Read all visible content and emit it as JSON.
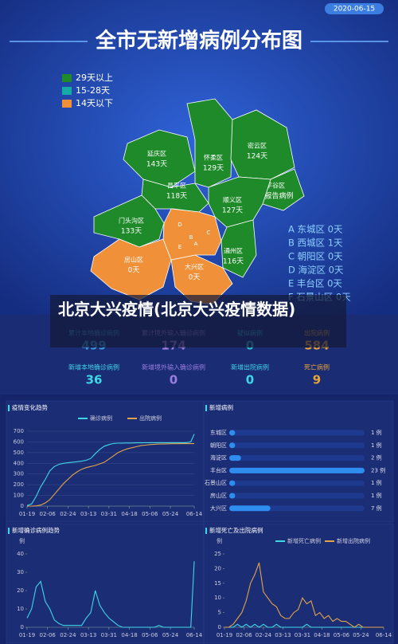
{
  "header": {
    "date": "2020-06-15",
    "title": "全市无新增病例分布图"
  },
  "map": {
    "legend": [
      {
        "label": "29天以上",
        "color": "#1e8a2a"
      },
      {
        "label": "15-28天",
        "color": "#17a8a8"
      },
      {
        "label": "14天以下",
        "color": "#f0913a"
      }
    ],
    "districts": [
      {
        "name": "延庆区",
        "days": "143天",
        "color": "#1e8a2a"
      },
      {
        "name": "怀柔区",
        "days": "129天",
        "color": "#1e8a2a"
      },
      {
        "name": "密云区",
        "days": "124天",
        "color": "#1e8a2a"
      },
      {
        "name": "昌平区",
        "days": "118天",
        "color": "#1e8a2a"
      },
      {
        "name": "平谷区",
        "days": "无报告病例",
        "color": "#1e8a2a"
      },
      {
        "name": "顺义区",
        "days": "127天",
        "color": "#1e8a2a"
      },
      {
        "name": "门头沟区",
        "days": "133天",
        "color": "#1e8a2a"
      },
      {
        "name": "通州区",
        "days": "116天",
        "color": "#1e8a2a"
      },
      {
        "name": "房山区",
        "days": "0天",
        "color": "#f0913a"
      },
      {
        "name": "大兴区",
        "days": "0天",
        "color": "#f0913a"
      }
    ],
    "center_labels": [
      "D",
      "B",
      "A",
      "C",
      "E"
    ],
    "district_list": [
      "A 东城区 0天",
      "B 西城区 1天",
      "C 朝阳区 0天",
      "D 海淀区 0天",
      "E 丰台区 0天",
      "F 石景山区 0天"
    ]
  },
  "caption": "北京大兴疫情(北京大兴疫情数据)",
  "stats": [
    {
      "label": "累计本地确诊病例",
      "value": 499,
      "color": "#3a9ad9"
    },
    {
      "label": "累计境外输入确诊病例",
      "value": 174,
      "color": "#9b7de0"
    },
    {
      "label": "疑似病例",
      "value": 0,
      "color": "#2fb8c8"
    },
    {
      "label": "出院病例",
      "value": 584,
      "color": "#e8a23a"
    },
    {
      "label": "新增本地确诊病例",
      "value": 36,
      "color": "#3fd6e8"
    },
    {
      "label": "新增境外输入确诊病例",
      "value": 0,
      "color": "#9b7de0"
    },
    {
      "label": "新增出院病例",
      "value": 0,
      "color": "#3fd6e8"
    },
    {
      "label": "死亡病例",
      "value": 9,
      "color": "#e8a23a"
    }
  ],
  "chart_data": [
    {
      "type": "line",
      "title": "疫情变化趋势",
      "grid": true,
      "x": [
        "01-19",
        "01-23",
        "01-27",
        "01-31",
        "02-04",
        "02-08",
        "02-12",
        "02-16",
        "02-20",
        "02-24",
        "02-28",
        "03-03",
        "03-07",
        "03-11",
        "03-15",
        "03-19",
        "03-23",
        "03-27",
        "03-31",
        "04-04",
        "04-08",
        "04-12",
        "04-16",
        "04-20",
        "04-24",
        "04-28",
        "05-02",
        "05-06",
        "05-10",
        "05-14",
        "05-18",
        "05-22",
        "05-26",
        "05-30",
        "06-03",
        "06-07",
        "06-11",
        "06-14"
      ],
      "xlim": [
        "01-19",
        "06-14"
      ],
      "xticks": [
        "01-19",
        "02-06",
        "02-24",
        "03-13",
        "03-31",
        "04-18",
        "05-06",
        "05-24",
        "06-14"
      ],
      "ylim": [
        0,
        700
      ],
      "yticks": [
        0,
        100,
        200,
        300,
        400,
        500,
        600,
        700
      ],
      "series": [
        {
          "name": "确诊病例",
          "color": "#3fd6e8",
          "values": [
            5,
            20,
            90,
            180,
            250,
            330,
            370,
            390,
            400,
            405,
            410,
            415,
            420,
            428,
            445,
            490,
            530,
            560,
            575,
            585,
            588,
            589,
            590,
            590,
            591,
            591,
            592,
            593,
            593,
            593,
            593,
            593,
            593,
            593,
            593,
            593,
            600,
            673
          ]
        },
        {
          "name": "出院病例",
          "color": "#e3a44a",
          "values": [
            0,
            0,
            2,
            10,
            30,
            60,
            110,
            160,
            210,
            250,
            290,
            320,
            345,
            360,
            370,
            380,
            395,
            410,
            440,
            470,
            500,
            520,
            535,
            545,
            555,
            565,
            570,
            575,
            578,
            580,
            580,
            582,
            583,
            583,
            584,
            584,
            584,
            584
          ]
        }
      ]
    },
    {
      "type": "bar",
      "title": "新增病例",
      "color": "#2f8df0",
      "categories": [
        "东城区",
        "朝阳区",
        "海淀区",
        "丰台区",
        "石景山区",
        "房山区",
        "大兴区"
      ],
      "values": [
        1,
        1,
        2,
        23,
        1,
        1,
        7
      ],
      "value_labels": [
        "1 例",
        "1 例",
        "2 例",
        "23 例",
        "1 例",
        "1 例",
        "7 例"
      ]
    },
    {
      "type": "line",
      "title": "新增确诊病例趋势",
      "y_label": "例",
      "grid": false,
      "x": [
        "01-19",
        "01-23",
        "01-27",
        "01-31",
        "02-04",
        "02-08",
        "02-12",
        "02-16",
        "02-20",
        "02-24",
        "02-28",
        "03-03",
        "03-07",
        "03-11",
        "03-15",
        "03-19",
        "03-23",
        "03-27",
        "03-31",
        "04-04",
        "04-08",
        "04-12",
        "04-16",
        "04-20",
        "04-24",
        "04-28",
        "05-02",
        "05-06",
        "05-10",
        "05-14",
        "05-18",
        "05-22",
        "05-26",
        "05-30",
        "06-03",
        "06-07",
        "06-11",
        "06-14"
      ],
      "xlim": [
        "01-19",
        "06-14"
      ],
      "xticks": [
        "01-19",
        "02-06",
        "02-24",
        "03-13",
        "03-31",
        "04-18",
        "05-06",
        "05-24",
        "06-14"
      ],
      "ylim": [
        0,
        40
      ],
      "yticks": [
        0,
        10,
        20,
        30,
        40
      ],
      "series": [
        {
          "name": null,
          "color": "#3fd6e8",
          "values": [
            5,
            10,
            22,
            25,
            14,
            10,
            4,
            2,
            1,
            1,
            1,
            1,
            1,
            5,
            8,
            20,
            12,
            8,
            5,
            3,
            1,
            0,
            0,
            0,
            0,
            0,
            0,
            0,
            0,
            1,
            0,
            0,
            0,
            0,
            0,
            0,
            0,
            36
          ]
        }
      ]
    },
    {
      "type": "line",
      "title": "新增死亡及出院病例",
      "y_label": "例",
      "grid": false,
      "x": [
        "01-19",
        "01-23",
        "01-27",
        "01-31",
        "02-04",
        "02-08",
        "02-12",
        "02-16",
        "02-20",
        "02-24",
        "02-28",
        "03-03",
        "03-07",
        "03-11",
        "03-15",
        "03-19",
        "03-23",
        "03-27",
        "03-31",
        "04-04",
        "04-08",
        "04-12",
        "04-16",
        "04-20",
        "04-24",
        "04-28",
        "05-02",
        "05-06",
        "05-10",
        "05-14",
        "05-18",
        "05-22",
        "05-26",
        "05-30",
        "06-03",
        "06-07",
        "06-11",
        "06-14"
      ],
      "xlim": [
        "01-19",
        "06-14"
      ],
      "xticks": [
        "01-19",
        "02-06",
        "02-24",
        "03-13",
        "03-31",
        "04-18",
        "05-06",
        "05-24",
        "06-14"
      ],
      "ylim": [
        0,
        25
      ],
      "yticks": [
        0,
        5,
        10,
        15,
        20,
        25
      ],
      "series": [
        {
          "name": "新增死亡病例",
          "color": "#3fd6e8",
          "values": [
            0,
            0,
            0,
            1,
            0,
            1,
            0,
            1,
            0,
            1,
            0,
            0,
            1,
            0,
            0,
            0,
            0,
            0,
            0,
            1,
            0,
            0,
            0,
            0,
            0,
            0,
            0,
            0,
            0,
            0,
            0,
            0,
            0,
            0,
            0,
            0,
            0,
            0
          ]
        },
        {
          "name": "新增出院病例",
          "color": "#e3a44a",
          "values": [
            0,
            0,
            1,
            3,
            5,
            9,
            15,
            18,
            22,
            12,
            10,
            8,
            7,
            4,
            3,
            3,
            5,
            6,
            10,
            8,
            9,
            4,
            5,
            3,
            4,
            2,
            3,
            2,
            2,
            1,
            0,
            1,
            0,
            0,
            0,
            0,
            0,
            0
          ]
        }
      ]
    }
  ]
}
